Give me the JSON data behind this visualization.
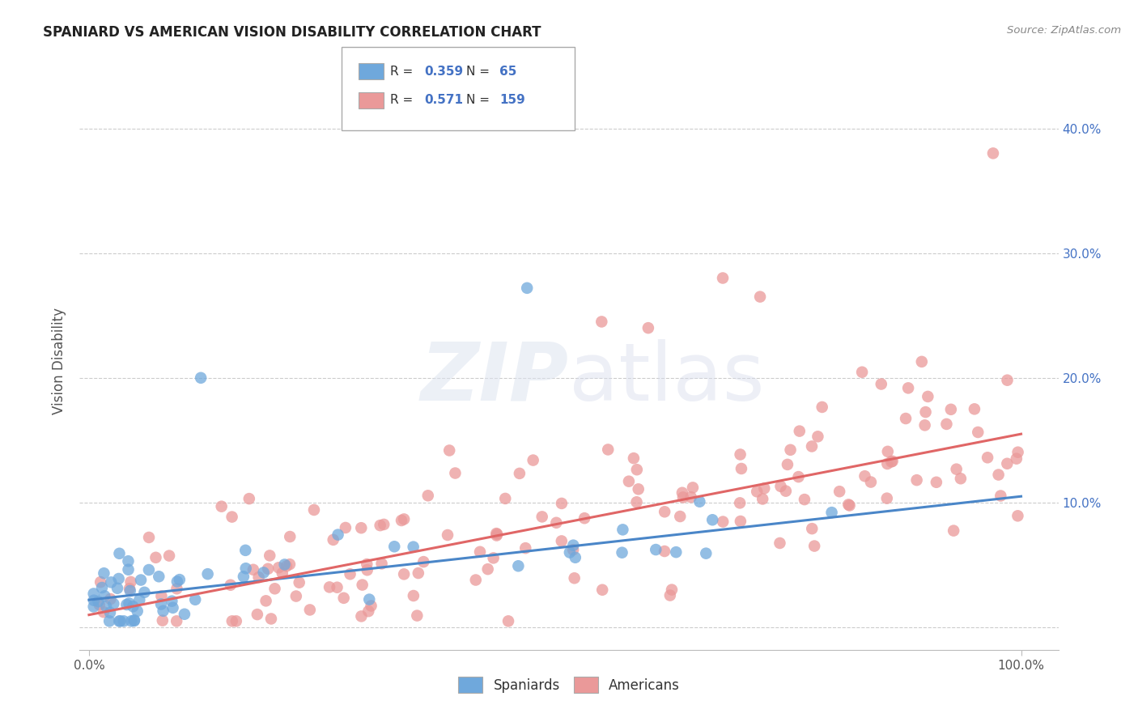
{
  "title": "SPANIARD VS AMERICAN VISION DISABILITY CORRELATION CHART",
  "source": "Source: ZipAtlas.com",
  "ylabel": "Vision Disability",
  "xlim": [
    -0.01,
    1.04
  ],
  "ylim": [
    -0.018,
    0.445
  ],
  "yticks": [
    0.0,
    0.1,
    0.2,
    0.3,
    0.4
  ],
  "ytick_labels": [
    "",
    "10.0%",
    "20.0%",
    "30.0%",
    "40.0%"
  ],
  "xtick_labels": [
    "0.0%",
    "100.0%"
  ],
  "spaniards_color": "#6fa8dc",
  "americans_color": "#ea9999",
  "spaniards_line_color": "#4a86c8",
  "americans_line_color": "#e06666",
  "R_spaniards": 0.359,
  "N_spaniards": 65,
  "R_americans": 0.571,
  "N_americans": 159,
  "grid_color": "#cccccc",
  "sp_line_x0": 0.0,
  "sp_line_y0": 0.022,
  "sp_line_x1": 1.0,
  "sp_line_y1": 0.105,
  "am_line_x0": 0.0,
  "am_line_y0": 0.01,
  "am_line_x1": 1.0,
  "am_line_y1": 0.155
}
